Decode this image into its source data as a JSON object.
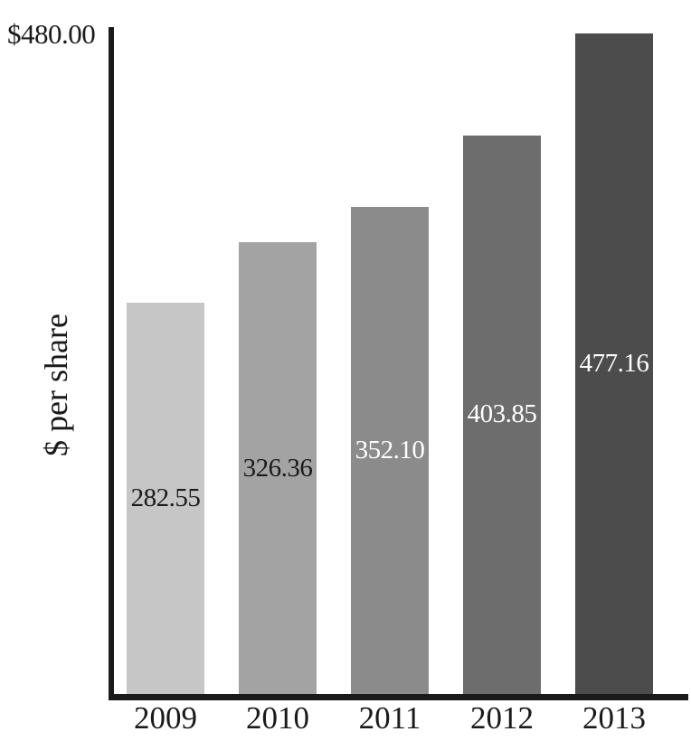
{
  "chart_data": {
    "type": "bar",
    "title": "",
    "ylabel": "$ per share",
    "xlabel": "",
    "y_max_tick_label": "$480.00",
    "ylim": [
      0,
      480
    ],
    "grid": false,
    "legend": false,
    "background_color": "#ffffff",
    "axis_color": "#1a1a1a",
    "categories": [
      "2009",
      "2010",
      "2011",
      "2012",
      "2013"
    ],
    "values": [
      282.55,
      326.36,
      352.1,
      403.85,
      477.16
    ],
    "value_labels": [
      "282.55",
      "326.36",
      "352.10",
      "403.85",
      "477.16"
    ],
    "bar_colors": [
      "#c6c6c6",
      "#a3a3a3",
      "#8b8b8b",
      "#6d6d6d",
      "#4c4c4c"
    ],
    "value_label_colors": [
      "#1a1a1a",
      "#1a1a1a",
      "#ffffff",
      "#ffffff",
      "#ffffff"
    ]
  }
}
